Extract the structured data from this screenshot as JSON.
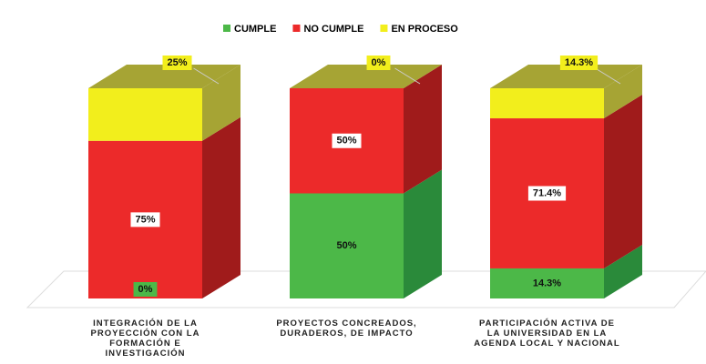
{
  "chart_data": {
    "type": "bar",
    "stacked": true,
    "categories": [
      "INTEGRACIÓN DE LA\nPROYECCIÓN CON LA\nFORMACIÓN E\nINVESTIGACIÓN",
      "PROYECTOS CONCREADOS,\nDURADEROS, DE IMPACTO",
      "PARTICIPACIÓN ACTIVA DE\nLA UNIVERSIDAD EN LA\nAGENDA LOCAL Y NACIONAL"
    ],
    "series": [
      {
        "name": "CUMPLE",
        "color": "#4cb848",
        "side": "#2a8a3a",
        "values": [
          0,
          50,
          14.3
        ],
        "value_labels": [
          "0%",
          "50%",
          "14.3%"
        ]
      },
      {
        "name": "NO CUMPLE",
        "color": "#ec2a2a",
        "side": "#a01b1b",
        "values": [
          75,
          50,
          71.4
        ],
        "value_labels": [
          "75%",
          "50%",
          "71.4%"
        ]
      },
      {
        "name": "EN PROCESO",
        "color": "#f2ee1c",
        "side": "#a6a434",
        "values": [
          25,
          0,
          14.3
        ],
        "value_labels": [
          "25%",
          "0%",
          "14.3%"
        ]
      }
    ],
    "legend": "top"
  }
}
